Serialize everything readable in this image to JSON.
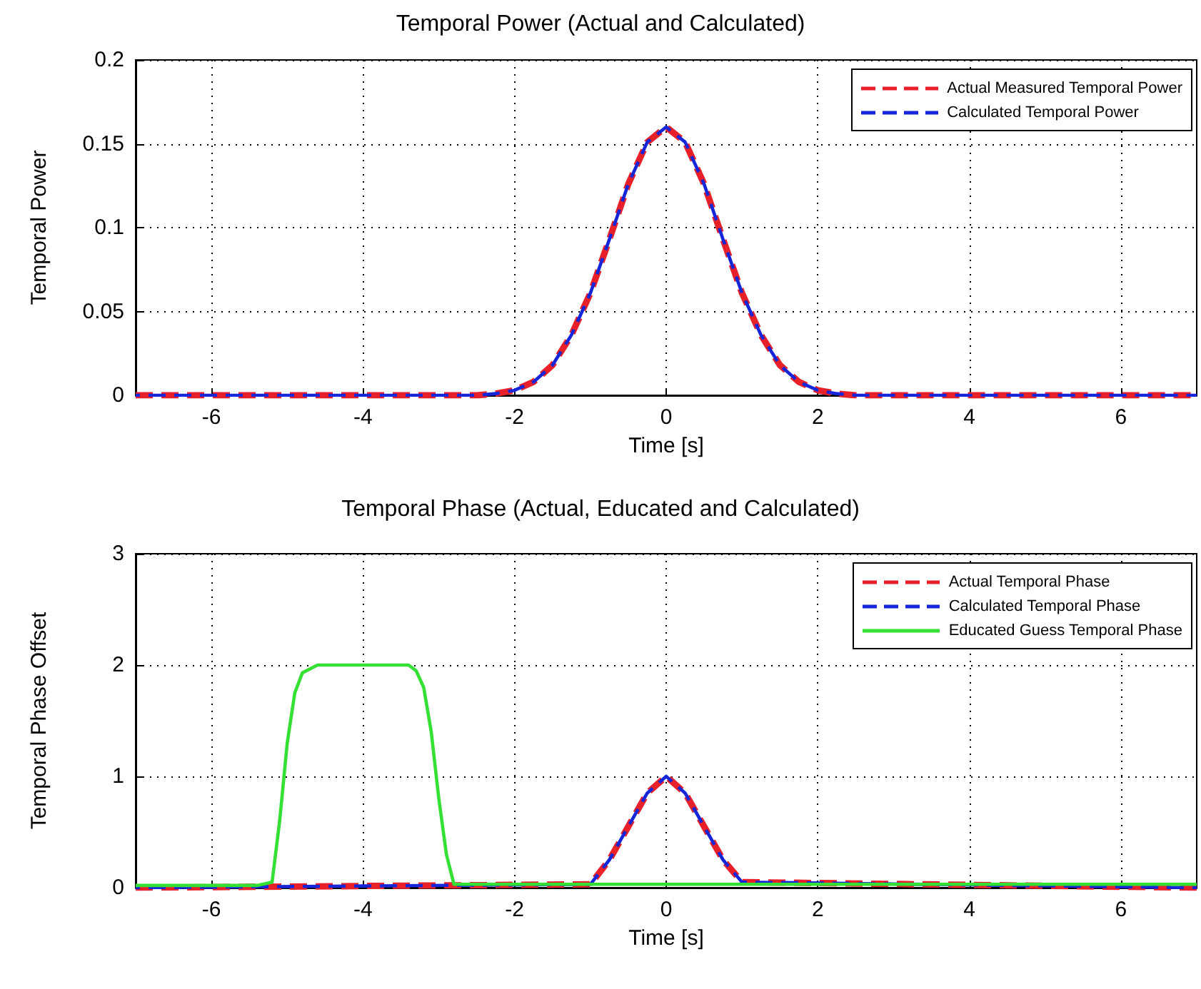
{
  "chart_data": [
    {
      "type": "line",
      "title": "Temporal Power (Actual and Calculated)",
      "xlabel": "Time [s]",
      "ylabel": "Temporal Power",
      "xlim": [
        -7,
        7
      ],
      "xticks": [
        -6,
        -4,
        -2,
        0,
        2,
        4,
        6
      ],
      "ylim": [
        0,
        0.2
      ],
      "yticks": [
        0,
        0.05,
        0.1,
        0.15,
        0.2
      ],
      "grid": true,
      "legend": "top right",
      "marker": "none",
      "x": [
        -7,
        -2.5,
        -2.25,
        -2,
        -1.75,
        -1.5,
        -1.25,
        -1,
        -0.75,
        -0.5,
        -0.25,
        0,
        0.25,
        0.5,
        0.75,
        1,
        1.25,
        1.5,
        1.75,
        2,
        2.25,
        2.5,
        7
      ],
      "series": [
        {
          "name": "Actual Measured Temporal Power",
          "color": "#e8202a",
          "line_style": "dashed",
          "values": [
            0,
            0,
            0.001,
            0.003,
            0.008,
            0.018,
            0.036,
            0.061,
            0.093,
            0.126,
            0.151,
            0.16,
            0.151,
            0.126,
            0.093,
            0.061,
            0.036,
            0.018,
            0.008,
            0.003,
            0.001,
            0,
            0
          ]
        },
        {
          "name": "Calculated Temporal Power",
          "color": "#1426d8",
          "line_style": "dashed",
          "values": [
            0,
            0,
            0.001,
            0.003,
            0.008,
            0.018,
            0.036,
            0.061,
            0.093,
            0.126,
            0.151,
            0.16,
            0.151,
            0.126,
            0.093,
            0.061,
            0.036,
            0.018,
            0.008,
            0.003,
            0.001,
            0,
            0
          ]
        }
      ]
    },
    {
      "type": "line",
      "title": "Temporal Phase (Actual, Educated and Calculated)",
      "xlabel": "Time [s]",
      "ylabel": "Temporal Phase Offset",
      "xlim": [
        -7,
        7
      ],
      "xticks": [
        -6,
        -4,
        -2,
        0,
        2,
        4,
        6
      ],
      "ylim": [
        0,
        3
      ],
      "yticks": [
        0,
        1,
        2,
        3
      ],
      "grid": true,
      "legend": "top right",
      "marker": "none",
      "series": [
        {
          "name": "Actual Temporal Phase",
          "color": "#e8202a",
          "line_style": "dashed",
          "x": [
            -7,
            -1,
            -0.75,
            -0.5,
            -0.25,
            0,
            0.25,
            0.5,
            0.75,
            1,
            7
          ],
          "values": [
            0,
            0.03,
            0.25,
            0.55,
            0.85,
            1,
            0.85,
            0.55,
            0.25,
            0.05,
            0
          ]
        },
        {
          "name": "Calculated Temporal Phase",
          "color": "#1426d8",
          "line_style": "dashed",
          "x": [
            -7,
            -1,
            -0.75,
            -0.5,
            -0.25,
            0,
            0.25,
            0.5,
            0.75,
            1,
            7
          ],
          "values": [
            0,
            0.03,
            0.25,
            0.55,
            0.85,
            1,
            0.85,
            0.55,
            0.25,
            0.05,
            0
          ]
        },
        {
          "name": "Educated Guess Temporal Phase",
          "color": "#33e033",
          "line_style": "solid",
          "x": [
            -7,
            -5.4,
            -5.2,
            -5.1,
            -5,
            -4.9,
            -4.8,
            -4.6,
            -3.4,
            -3.3,
            -3.2,
            -3.1,
            -3,
            -2.9,
            -2.8,
            7
          ],
          "values": [
            0.02,
            0.02,
            0.05,
            0.6,
            1.3,
            1.75,
            1.93,
            2,
            2,
            1.95,
            1.8,
            1.4,
            0.8,
            0.3,
            0.03,
            0.03
          ]
        }
      ]
    }
  ]
}
